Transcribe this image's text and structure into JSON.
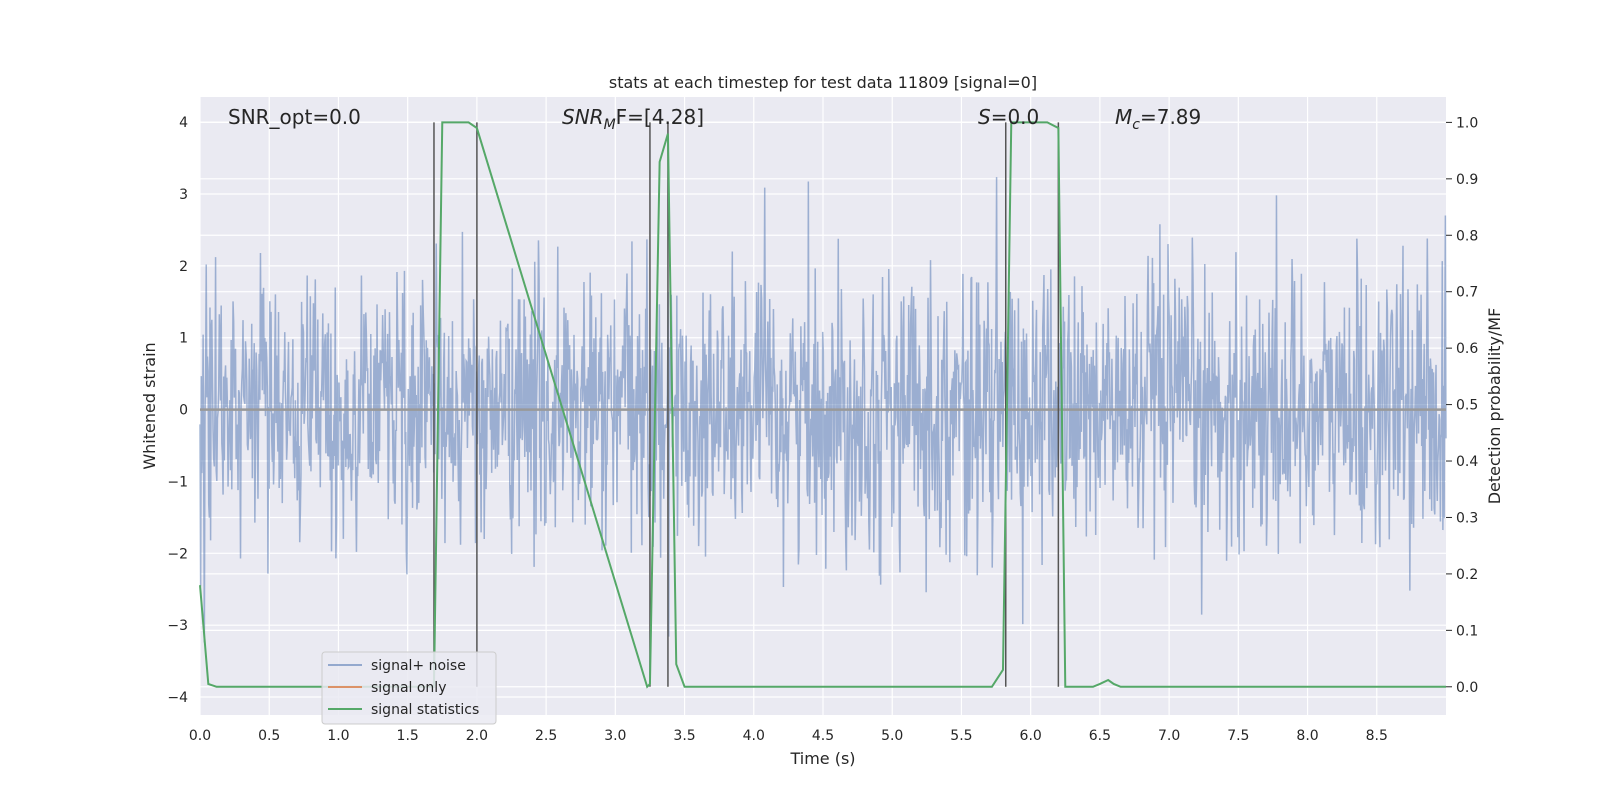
{
  "chart_data": {
    "type": "line",
    "title": "stats at each timestep for test data 11809 [signal=0]",
    "xlabel": "Time (s)",
    "ylabel_left": "Whitened strain",
    "ylabel_right": "Detection probability/MF",
    "xlim": [
      0.0,
      9.0
    ],
    "ylim_left": [
      -4.25,
      4.35
    ],
    "ylim_right": [
      -0.05,
      1.045
    ],
    "x_ticks": [
      0.0,
      0.5,
      1.0,
      1.5,
      2.0,
      2.5,
      3.0,
      3.5,
      4.0,
      4.5,
      5.0,
      5.5,
      6.0,
      6.5,
      7.0,
      7.5,
      8.0,
      8.5
    ],
    "x_tick_labels": [
      "0.0",
      "0.5",
      "1.0",
      "1.5",
      "2.0",
      "2.5",
      "3.0",
      "3.5",
      "4.0",
      "4.5",
      "5.0",
      "5.5",
      "6.0",
      "6.5",
      "7.0",
      "7.5",
      "8.0",
      "8.5"
    ],
    "y_left_ticks": [
      4,
      3,
      2,
      1,
      0,
      -1,
      -2,
      -3,
      -4
    ],
    "y_left_tick_labels": [
      "4",
      "3",
      "2",
      "1",
      "0",
      "−1",
      "−2",
      "−3",
      "−4"
    ],
    "y_right_ticks": [
      1.0,
      0.9,
      0.8,
      0.7,
      0.6,
      0.5,
      0.4,
      0.3,
      0.2,
      0.1,
      0.0
    ],
    "y_right_tick_labels": [
      "1.0",
      "0.9",
      "0.8",
      "0.7",
      "0.6",
      "0.5",
      "0.4",
      "0.3",
      "0.2",
      "0.1",
      "0.0"
    ],
    "grid": true,
    "legend_placement": "lower-left",
    "annotations": {
      "snr_opt": "SNR_opt=0.0",
      "snr_mf_main": "SNR",
      "snr_mf_sub": "M",
      "snr_mf_rest": "F=[4.28]",
      "s_main": "S",
      "s_rest": "=0.0",
      "mc_main": "M",
      "mc_sub": "c",
      "mc_rest": "=7.89"
    },
    "vertical_markers": [
      1.69,
      2.0,
      3.25,
      3.38,
      5.82,
      6.2
    ],
    "series": [
      {
        "name": "signal+ noise",
        "color": "#4c72b0",
        "noise_sigma": 0.95,
        "noise_duration_s": 9.0,
        "samples": 2000
      },
      {
        "name": "signal only",
        "color": "#dd8452",
        "x": [
          0.0,
          9.0
        ],
        "y": [
          0.0,
          0.0
        ]
      },
      {
        "name": "signal statistics",
        "color": "#55a868",
        "x": [
          0.0,
          0.06,
          0.12,
          1.64,
          1.69,
          1.75,
          1.94,
          2.0,
          3.23,
          3.25,
          3.32,
          3.38,
          3.44,
          3.5,
          5.72,
          5.8,
          5.86,
          6.12,
          6.2,
          6.25,
          6.3,
          6.45,
          6.5,
          6.56,
          6.6,
          6.65,
          9.0
        ],
        "y": [
          0.18,
          0.005,
          0.0,
          0.0,
          0.0,
          1.0,
          1.0,
          0.99,
          0.0,
          0.005,
          0.93,
          0.98,
          0.04,
          0.0,
          0.0,
          0.03,
          1.0,
          1.0,
          0.99,
          0.0,
          0.0,
          0.0,
          0.005,
          0.012,
          0.005,
          0.0,
          0.0
        ]
      }
    ]
  }
}
